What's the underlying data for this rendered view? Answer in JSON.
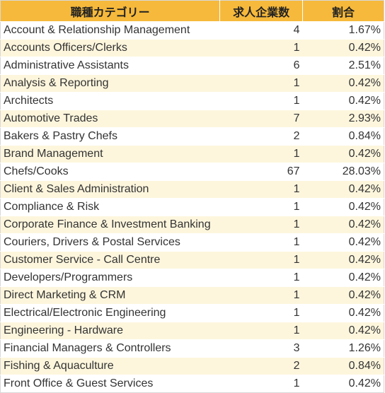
{
  "table": {
    "headers": [
      "職種カテゴリー",
      "求人企業数",
      "割合"
    ],
    "rows": [
      {
        "category": "Account & Relationship Management",
        "count": "4",
        "share": "1.67%"
      },
      {
        "category": "Accounts Officers/Clerks",
        "count": "1",
        "share": "0.42%"
      },
      {
        "category": "Administrative Assistants",
        "count": "6",
        "share": "2.51%"
      },
      {
        "category": "Analysis & Reporting",
        "count": "1",
        "share": "0.42%"
      },
      {
        "category": "Architects",
        "count": "1",
        "share": "0.42%"
      },
      {
        "category": "Automotive Trades",
        "count": "7",
        "share": "2.93%"
      },
      {
        "category": "Bakers & Pastry Chefs",
        "count": "2",
        "share": "0.84%"
      },
      {
        "category": "Brand Management",
        "count": "1",
        "share": "0.42%"
      },
      {
        "category": "Chefs/Cooks",
        "count": "67",
        "share": "28.03%"
      },
      {
        "category": "Client & Sales Administration",
        "count": "1",
        "share": "0.42%"
      },
      {
        "category": "Compliance & Risk",
        "count": "1",
        "share": "0.42%"
      },
      {
        "category": "Corporate Finance & Investment Banking",
        "count": "1",
        "share": "0.42%"
      },
      {
        "category": "Couriers, Drivers & Postal Services",
        "count": "1",
        "share": "0.42%"
      },
      {
        "category": "Customer Service - Call Centre",
        "count": "1",
        "share": "0.42%"
      },
      {
        "category": "Developers/Programmers",
        "count": "1",
        "share": "0.42%"
      },
      {
        "category": "Direct Marketing & CRM",
        "count": "1",
        "share": "0.42%"
      },
      {
        "category": "Electrical/Electronic Engineering",
        "count": "1",
        "share": "0.42%"
      },
      {
        "category": "Engineering - Hardware",
        "count": "1",
        "share": "0.42%"
      },
      {
        "category": "Financial Managers & Controllers",
        "count": "3",
        "share": "1.26%"
      },
      {
        "category": "Fishing & Aquaculture",
        "count": "2",
        "share": "0.84%"
      },
      {
        "category": "Front Office & Guest Services",
        "count": "1",
        "share": "0.42%"
      }
    ]
  },
  "colors": {
    "header_bg": "#f6b93b",
    "alt_row_bg": "#fdf6dd"
  }
}
